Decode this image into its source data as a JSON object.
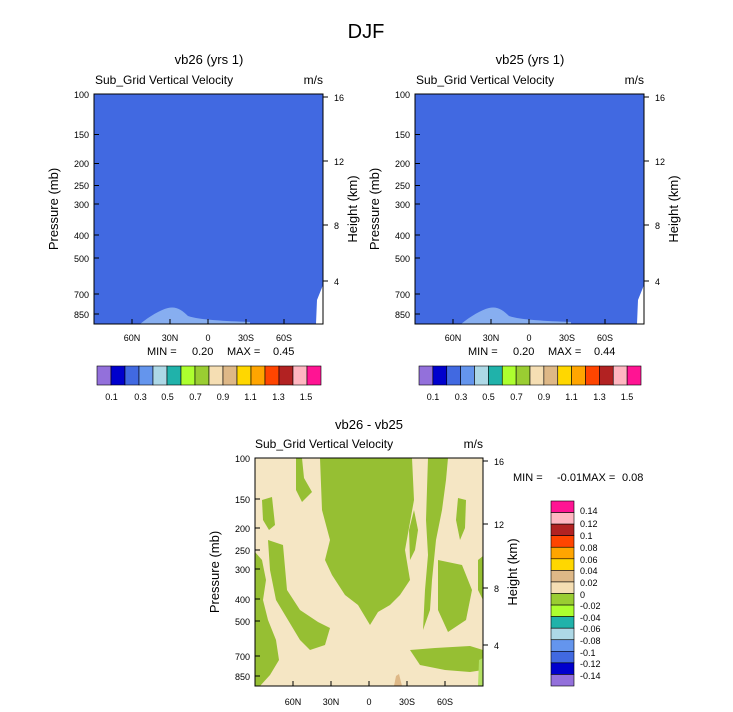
{
  "figure_title": "DJF",
  "colors": {
    "background_field": "#4169e1",
    "light_blue_patch": "#87aef0",
    "diff_tan": "#f5e6c4",
    "diff_green": "#96bf33",
    "diff_light_green": "#b3e063"
  },
  "chart_data": [
    {
      "type": "contour",
      "title": "vb26 (yrs 1)",
      "left_label": "Sub_Grid Vertical Velocity",
      "right_label": "m/s",
      "ylabel_left": "Pressure (mb)",
      "ylabel_right": "Height (km)",
      "y_ticks_left": [
        "100",
        "150",
        "200",
        "250",
        "300",
        "400",
        "500",
        "700",
        "850"
      ],
      "y_ticks_right": [
        "16",
        "12",
        "8",
        "4"
      ],
      "x_ticks": [
        "60N",
        "30N",
        "0",
        "30S",
        "60S"
      ],
      "min_label": "MIN =",
      "min_value": "0.20",
      "max_label": "MAX =",
      "max_value": "0.45",
      "colorbar_labels": [
        "0.1",
        "0.3",
        "0.5",
        "0.7",
        "0.9",
        "1.1",
        "1.3",
        "1.5"
      ],
      "colorbar_colors": [
        "#9370db",
        "#0000cd",
        "#4169e1",
        "#6495ed",
        "#add8e6",
        "#20b2aa",
        "#adff2f",
        "#9acd32",
        "#f5deb3",
        "#deb887",
        "#ffd700",
        "#ffa500",
        "#ff4500",
        "#b22222",
        "#ffb6c1",
        "#ff1493"
      ]
    },
    {
      "type": "contour",
      "title": "vb25 (yrs 1)",
      "left_label": "Sub_Grid Vertical Velocity",
      "right_label": "m/s",
      "ylabel_left": "Pressure (mb)",
      "ylabel_right": "Height (km)",
      "y_ticks_left": [
        "100",
        "150",
        "200",
        "250",
        "300",
        "400",
        "500",
        "700",
        "850"
      ],
      "y_ticks_right": [
        "16",
        "12",
        "8",
        "4"
      ],
      "x_ticks": [
        "60N",
        "30N",
        "0",
        "30S",
        "60S"
      ],
      "min_label": "MIN =",
      "min_value": "0.20",
      "max_label": "MAX =",
      "max_value": "0.44",
      "colorbar_labels": [
        "0.1",
        "0.3",
        "0.5",
        "0.7",
        "0.9",
        "1.1",
        "1.3",
        "1.5"
      ],
      "colorbar_colors": [
        "#9370db",
        "#0000cd",
        "#4169e1",
        "#6495ed",
        "#add8e6",
        "#20b2aa",
        "#adff2f",
        "#9acd32",
        "#f5deb3",
        "#deb887",
        "#ffd700",
        "#ffa500",
        "#ff4500",
        "#b22222",
        "#ffb6c1",
        "#ff1493"
      ]
    },
    {
      "type": "contour",
      "title": "vb26 - vb25",
      "left_label": "Sub_Grid Vertical Velocity",
      "right_label": "m/s",
      "ylabel_left": "Pressure (mb)",
      "ylabel_right": "Height (km)",
      "y_ticks_left": [
        "100",
        "150",
        "200",
        "250",
        "300",
        "400",
        "500",
        "700",
        "850"
      ],
      "y_ticks_right": [
        "16",
        "12",
        "8",
        "4"
      ],
      "x_ticks": [
        "60N",
        "30N",
        "0",
        "30S",
        "60S"
      ],
      "min_label": "MIN =",
      "min_value": "-0.01",
      "max_label": "MAX =",
      "max_value": "0.08",
      "colorbar_labels": [
        "0.14",
        "0.12",
        "0.1",
        "0.08",
        "0.06",
        "0.04",
        "0.02",
        "0",
        "-0.02",
        "-0.04",
        "-0.06",
        "-0.08",
        "-0.1",
        "-0.12",
        "-0.14"
      ],
      "colorbar_colors": [
        "#ff1493",
        "#ffb6c1",
        "#b22222",
        "#ff4500",
        "#ffa500",
        "#ffd700",
        "#deb887",
        "#f5deb3",
        "#9acd32",
        "#adff2f",
        "#20b2aa",
        "#add8e6",
        "#6495ed",
        "#4169e1",
        "#0000cd",
        "#9370db"
      ]
    }
  ]
}
